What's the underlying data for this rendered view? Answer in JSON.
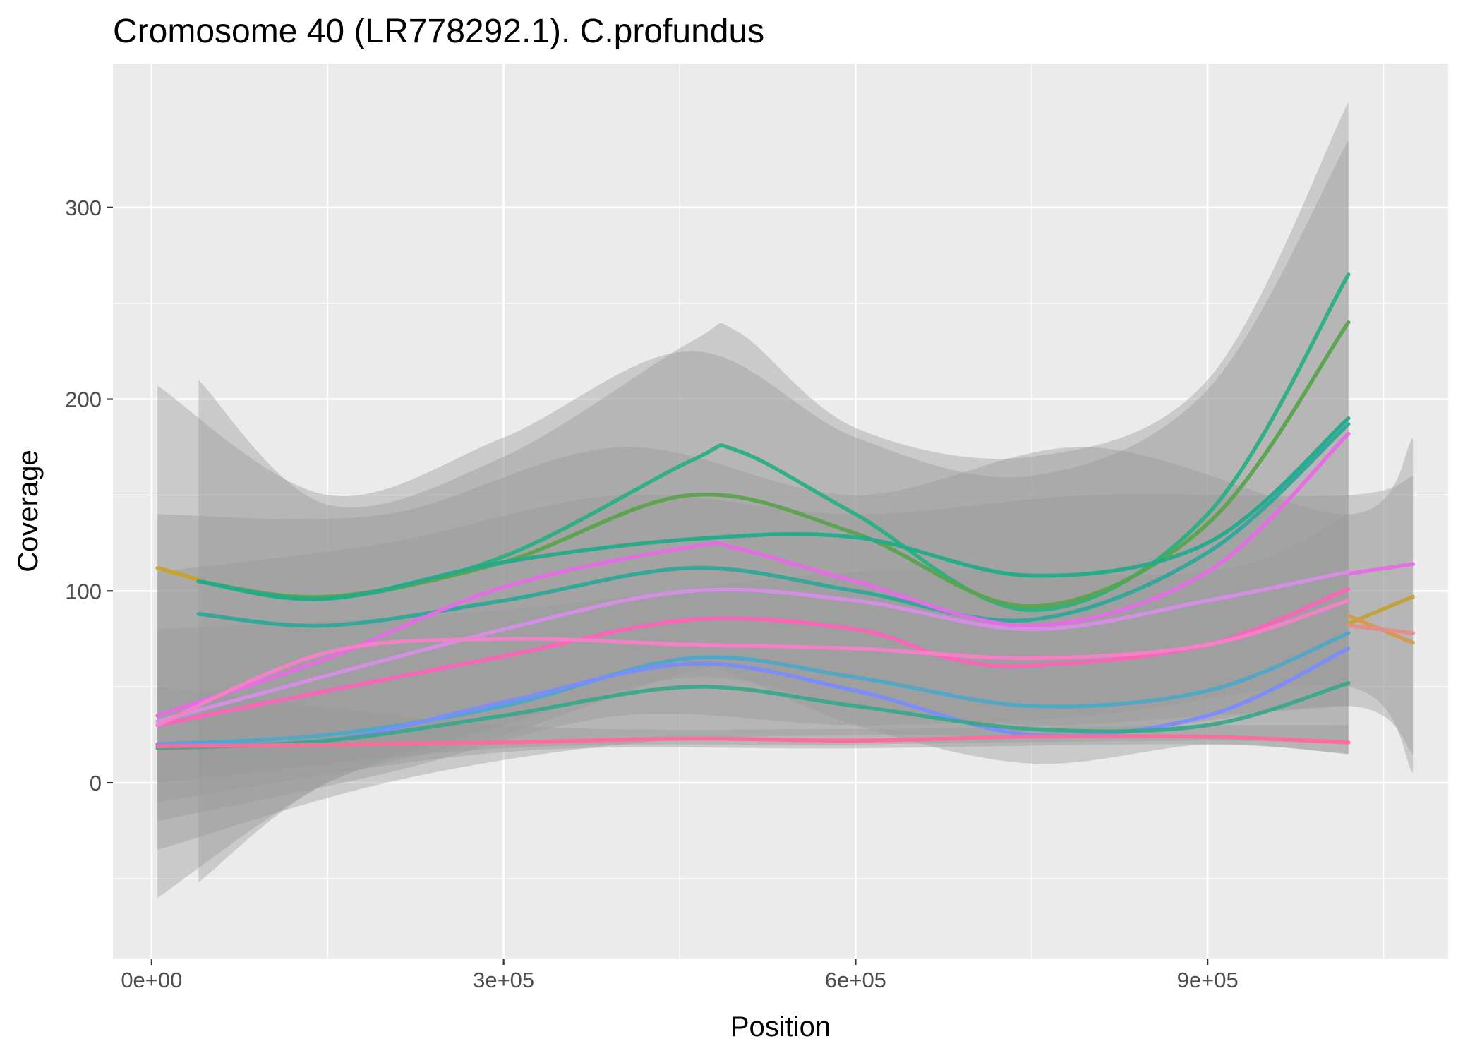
{
  "chart_data": {
    "type": "line",
    "title": "Cromosome 40 (LR778292.1). C.profundus",
    "xlabel": "Position",
    "ylabel": "Coverage",
    "xlim": [
      -33000,
      1105000
    ],
    "ylim": [
      -92,
      375
    ],
    "x_ticks": [
      0,
      300000,
      600000,
      900000
    ],
    "x_tick_labels": [
      "0e+00",
      "3e+05",
      "6e+05",
      "9e+05"
    ],
    "y_ticks": [
      0,
      100,
      200,
      300
    ],
    "y_tick_labels": [
      "0",
      "100",
      "200",
      "300"
    ],
    "x_minor": [
      150000,
      450000,
      750000,
      1050000
    ],
    "y_minor": [
      -50,
      50,
      150,
      250
    ],
    "grid": true,
    "legend": "none",
    "colors": {
      "panel": "#ebebeb",
      "grid": "#ffffff",
      "band": "#999999"
    },
    "bands": [
      {
        "x": [
          40000,
          150000,
          300000,
          460000,
          500000,
          600000,
          750000,
          900000,
          1020000
        ],
        "lower": [
          -52,
          0,
          25,
          58,
          55,
          30,
          10,
          20,
          15
        ],
        "upper": [
          210,
          145,
          170,
          230,
          235,
          185,
          170,
          210,
          355
        ]
      },
      {
        "x": [
          5000,
          150000,
          300000,
          460000,
          600000,
          750000,
          900000,
          1020000
        ],
        "lower": [
          -60,
          0,
          30,
          55,
          40,
          30,
          35,
          40
        ],
        "upper": [
          207,
          150,
          180,
          225,
          180,
          160,
          205,
          335
        ]
      },
      {
        "x": [
          5000,
          200000,
          400000,
          600000,
          800000,
          1020000,
          1075000
        ],
        "lower": [
          -20,
          5,
          35,
          30,
          35,
          50,
          5
        ],
        "upper": [
          140,
          140,
          175,
          150,
          175,
          140,
          180
        ]
      },
      {
        "x": [
          5000,
          200000,
          400000,
          600000,
          800000,
          1020000,
          1075000
        ],
        "lower": [
          -35,
          0,
          20,
          25,
          25,
          40,
          15
        ],
        "upper": [
          110,
          125,
          150,
          140,
          150,
          150,
          160
        ]
      },
      {
        "x": [
          5000,
          300000,
          600000,
          900000,
          1020000
        ],
        "lower": [
          -10,
          16,
          18,
          20,
          15
        ],
        "upper": [
          80,
          90,
          110,
          110,
          140
        ]
      },
      {
        "x": [
          5000,
          300000,
          600000,
          900000,
          1020000
        ],
        "lower": [
          0,
          18,
          20,
          22,
          20
        ],
        "upper": [
          50,
          30,
          28,
          30,
          30
        ]
      }
    ],
    "series": [
      {
        "color": "#2bb07f",
        "x": [
          40000,
          150000,
          300000,
          460000,
          500000,
          600000,
          750000,
          900000,
          1020000
        ],
        "values": [
          105,
          96,
          118,
          168,
          173,
          140,
          90,
          140,
          265
        ]
      },
      {
        "color": "#5aa34e",
        "x": [
          40000,
          150000,
          300000,
          460000,
          600000,
          750000,
          900000,
          1020000
        ],
        "values": [
          105,
          97,
          115,
          150,
          130,
          92,
          135,
          240
        ]
      },
      {
        "color": "#c9a227",
        "x": [
          5000,
          40000
        ],
        "values": [
          112,
          106
        ]
      },
      {
        "color": "#22ab8a",
        "x": [
          40000,
          150000,
          300000,
          460000,
          600000,
          750000,
          900000,
          1020000
        ],
        "values": [
          105,
          96,
          115,
          127,
          128,
          108,
          125,
          190
        ]
      },
      {
        "color": "#2ea79a",
        "x": [
          40000,
          150000,
          300000,
          460000,
          600000,
          750000,
          900000,
          1020000
        ],
        "values": [
          88,
          82,
          95,
          112,
          100,
          85,
          120,
          187
        ]
      },
      {
        "color": "#e86ae8",
        "x": [
          5000,
          150000,
          300000,
          460000,
          500000,
          600000,
          750000,
          900000,
          1020000
        ],
        "values": [
          35,
          65,
          102,
          123,
          122,
          105,
          82,
          110,
          182
        ]
      },
      {
        "color": "#e86ae8",
        "x": [
          1020000,
          1075000
        ],
        "values": [
          109,
          114
        ]
      },
      {
        "color": "#d78ee6",
        "x": [
          5000,
          300000,
          460000,
          600000,
          750000,
          900000,
          1020000
        ],
        "values": [
          32,
          80,
          100,
          95,
          80,
          95,
          110
        ]
      },
      {
        "color": "#ff62bc",
        "x": [
          5000,
          150000,
          300000,
          460000,
          600000,
          680000,
          750000,
          900000,
          1020000
        ],
        "values": [
          30,
          48,
          66,
          85,
          80,
          65,
          61,
          72,
          101
        ]
      },
      {
        "color": "#f77fc9",
        "x": [
          5000,
          150000,
          300000,
          460000,
          600000,
          750000,
          900000,
          1020000
        ],
        "values": [
          30,
          68,
          75,
          72,
          70,
          65,
          72,
          95
        ]
      },
      {
        "color": "#c3a03a",
        "x": [
          1020000,
          1075000
        ],
        "values": [
          83,
          97
        ]
      },
      {
        "color": "#d79a4a",
        "x": [
          1020000,
          1075000
        ],
        "values": [
          87,
          73
        ]
      },
      {
        "color": "#e88a8a",
        "x": [
          1020000,
          1075000
        ],
        "values": [
          82,
          78
        ]
      },
      {
        "color": "#4fa8c7",
        "x": [
          5000,
          150000,
          300000,
          460000,
          600000,
          750000,
          900000,
          1020000
        ],
        "values": [
          20,
          25,
          40,
          65,
          55,
          40,
          48,
          78
        ]
      },
      {
        "color": "#7a8cff",
        "x": [
          5000,
          150000,
          300000,
          460000,
          600000,
          750000,
          900000,
          1020000
        ],
        "values": [
          20,
          22,
          42,
          62,
          48,
          25,
          35,
          70
        ]
      },
      {
        "color": "#3aa88a",
        "x": [
          5000,
          150000,
          300000,
          460000,
          600000,
          750000,
          900000,
          1020000
        ],
        "values": [
          18,
          22,
          35,
          50,
          40,
          28,
          30,
          52
        ]
      },
      {
        "color": "#ff6a9a",
        "x": [
          5000,
          150000,
          300000,
          460000,
          600000,
          750000,
          900000,
          1020000
        ],
        "values": [
          19,
          20,
          21,
          23,
          22,
          24,
          24,
          21
        ]
      }
    ]
  }
}
